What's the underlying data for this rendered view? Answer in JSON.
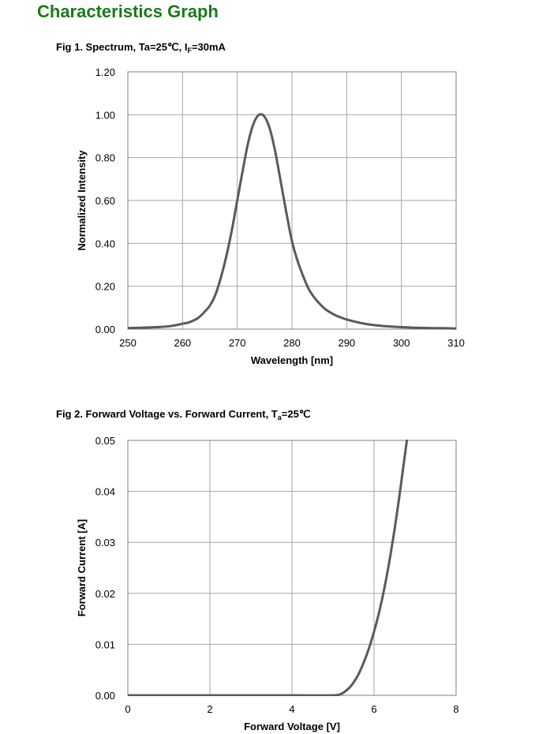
{
  "page": {
    "title": "Characteristics Graph"
  },
  "figures": [
    {
      "title_prefix": "Fig 1. Spectrum, Ta=25℃, I",
      "title_sub": "F",
      "title_suffix": "=30mA"
    },
    {
      "title_prefix": "Fig 2. Forward Voltage vs. Forward Current, T",
      "title_sub": "a",
      "title_suffix": "=25℃"
    }
  ],
  "colors": {
    "title": "#1a7a1a",
    "curve": "#5a5a5a",
    "grid": "#a6a6a6",
    "axis": "#808080"
  },
  "chart_data": [
    {
      "type": "line",
      "xlabel": "Wavelength [nm]",
      "ylabel": "Normalized Intensity",
      "xlim": [
        250,
        310
      ],
      "ylim": [
        0,
        1.2
      ],
      "xticks": [
        250,
        260,
        270,
        280,
        290,
        300,
        310
      ],
      "yticks": [
        0,
        0.2,
        0.4,
        0.6,
        0.8,
        1.0,
        1.2
      ],
      "x_tick_labels": [
        "250",
        "260",
        "270",
        "280",
        "290",
        "300",
        "310"
      ],
      "y_tick_labels": [
        "0.00",
        "0.20",
        "0.40",
        "0.60",
        "0.80",
        "1.00",
        "1.20"
      ],
      "grid": true,
      "series": [
        {
          "x": [
            250,
            252,
            254,
            256,
            258,
            260,
            261,
            262,
            263,
            264,
            265,
            266,
            267,
            268,
            269,
            270,
            271,
            272,
            273,
            274,
            275,
            276,
            277,
            278,
            279,
            280,
            281,
            282,
            283,
            284,
            285,
            286,
            287,
            288,
            289,
            290,
            292,
            294,
            296,
            298,
            300,
            302,
            305,
            308,
            310
          ],
          "y": [
            0.005,
            0.006,
            0.008,
            0.01,
            0.015,
            0.025,
            0.03,
            0.04,
            0.055,
            0.08,
            0.11,
            0.16,
            0.24,
            0.34,
            0.46,
            0.6,
            0.74,
            0.87,
            0.96,
            1.0,
            0.99,
            0.93,
            0.82,
            0.68,
            0.54,
            0.41,
            0.32,
            0.25,
            0.19,
            0.15,
            0.12,
            0.095,
            0.078,
            0.064,
            0.054,
            0.045,
            0.032,
            0.022,
            0.016,
            0.012,
            0.009,
            0.007,
            0.005,
            0.004,
            0.003
          ]
        }
      ]
    },
    {
      "type": "line",
      "xlabel": "Forward Voltage [V]",
      "ylabel": "Forward Current [A]",
      "xlim": [
        0,
        8
      ],
      "ylim": [
        0,
        0.05
      ],
      "xticks": [
        0,
        2,
        4,
        6,
        8
      ],
      "yticks": [
        0,
        0.01,
        0.02,
        0.03,
        0.04,
        0.05
      ],
      "x_tick_labels": [
        "0",
        "2",
        "4",
        "6",
        "8"
      ],
      "y_tick_labels": [
        "0.00",
        "0.01",
        "0.02",
        "0.03",
        "0.04",
        "0.05"
      ],
      "grid": true,
      "series": [
        {
          "x": [
            0,
            1,
            2,
            3,
            4,
            5,
            5.2,
            5.3,
            5.4,
            5.5,
            5.6,
            5.7,
            5.8,
            5.9,
            6.0,
            6.1,
            6.2,
            6.3,
            6.4,
            6.5,
            6.6,
            6.7,
            6.8
          ],
          "y": [
            0,
            0,
            0,
            0,
            0,
            0,
            0.0003,
            0.0008,
            0.0015,
            0.0025,
            0.0038,
            0.0055,
            0.0075,
            0.0098,
            0.0125,
            0.0155,
            0.019,
            0.023,
            0.0275,
            0.0325,
            0.038,
            0.044,
            0.05
          ]
        }
      ]
    }
  ]
}
